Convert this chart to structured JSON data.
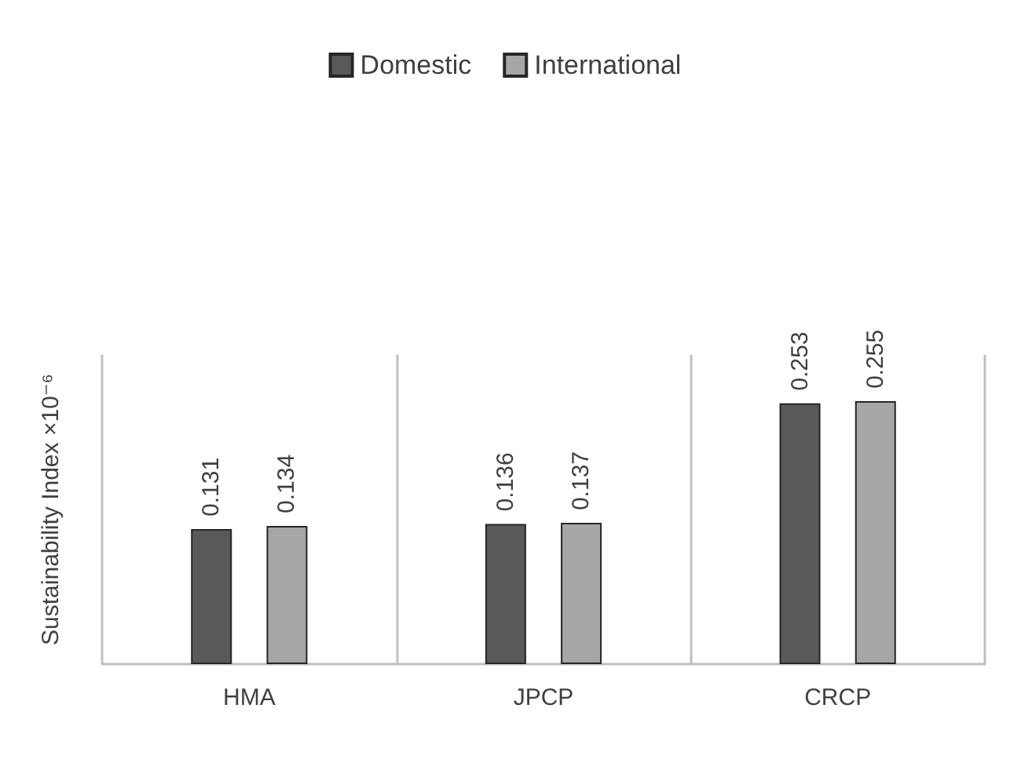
{
  "chart_data": {
    "type": "bar",
    "ylabel": "Sustainability Index ×10⁻⁶",
    "categories": [
      "HMA",
      "JPCP",
      "CRCP"
    ],
    "series": [
      {
        "name": "Domestic",
        "color": "#595959",
        "values": [
          0.131,
          0.136,
          0.253
        ]
      },
      {
        "name": "International",
        "color": "#a6a6a6",
        "values": [
          0.134,
          0.137,
          0.255
        ]
      }
    ],
    "ylim": [
      0,
      0.3
    ],
    "tick_labels": "x",
    "grid": "x",
    "legend": "top",
    "data_labels": true
  }
}
